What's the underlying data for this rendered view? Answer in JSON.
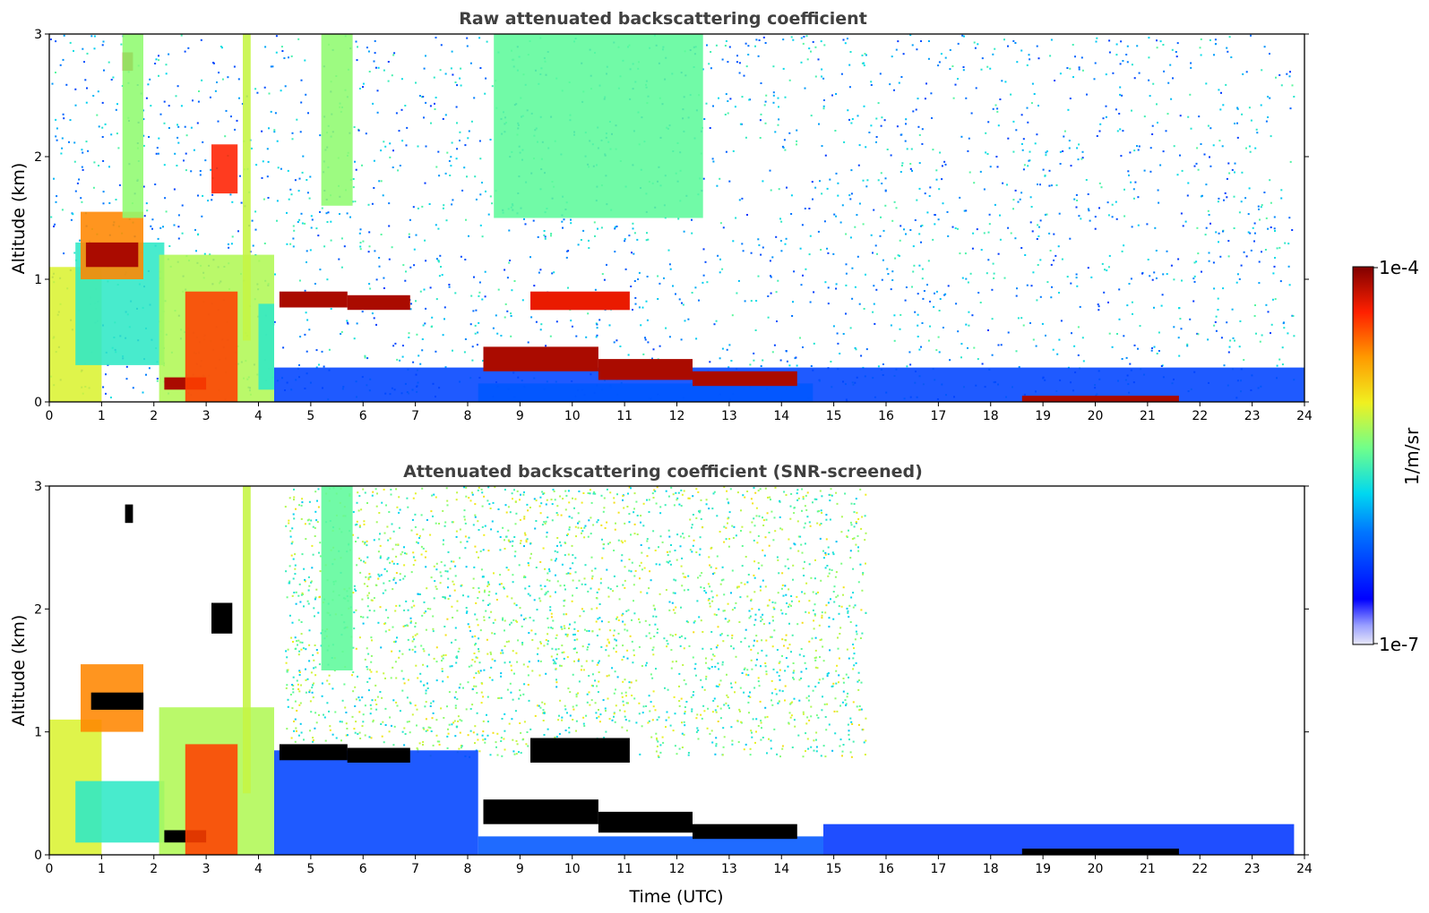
{
  "chart_data": [
    {
      "type": "heatmap",
      "id": "raw",
      "title": "Raw attenuated backscattering coefficient",
      "xlabel": "",
      "ylabel": "Altitude (km)",
      "xlim": [
        0,
        24
      ],
      "ylim": [
        0,
        3
      ],
      "xticks": [
        "0",
        "1",
        "2",
        "3",
        "4",
        "5",
        "6",
        "7",
        "8",
        "9",
        "10",
        "11",
        "12",
        "13",
        "14",
        "15",
        "16",
        "17",
        "18",
        "19",
        "20",
        "21",
        "22",
        "23",
        "24"
      ],
      "yticks": [
        "0",
        "1",
        "2",
        "3"
      ],
      "background_noise": {
        "x_range": [
          0,
          23.8
        ],
        "alt_range": [
          0,
          3.0
        ],
        "level": 0.35
      },
      "features": [
        {
          "x0": 0.0,
          "x1": 1.0,
          "y0": 0.0,
          "y1": 1.1,
          "level": 0.62
        },
        {
          "x0": 0.5,
          "x1": 2.2,
          "y0": 0.3,
          "y1": 1.3,
          "level": 0.45
        },
        {
          "x0": 0.6,
          "x1": 1.8,
          "y0": 1.0,
          "y1": 1.55,
          "level": 0.78
        },
        {
          "x0": 0.7,
          "x1": 1.7,
          "y0": 1.1,
          "y1": 1.3,
          "level": 0.96
        },
        {
          "x0": 1.4,
          "x1": 1.6,
          "y0": 2.7,
          "y1": 2.85,
          "level": 0.92
        },
        {
          "x0": 1.4,
          "x1": 1.8,
          "y0": 1.5,
          "y1": 3.0,
          "level": 0.55
        },
        {
          "x0": 2.1,
          "x1": 4.3,
          "y0": 0.0,
          "y1": 1.2,
          "level": 0.58
        },
        {
          "x0": 2.2,
          "x1": 3.0,
          "y0": 0.1,
          "y1": 0.2,
          "level": 0.96
        },
        {
          "x0": 2.6,
          "x1": 3.6,
          "y0": 0.0,
          "y1": 0.9,
          "level": 0.85
        },
        {
          "x0": 3.1,
          "x1": 3.6,
          "y0": 1.7,
          "y1": 2.1,
          "level": 0.88
        },
        {
          "x0": 3.7,
          "x1": 3.85,
          "y0": 0.5,
          "y1": 3.0,
          "level": 0.6
        },
        {
          "x0": 4.0,
          "x1": 4.3,
          "y0": 0.1,
          "y1": 0.8,
          "level": 0.45
        },
        {
          "x0": 4.3,
          "x1": 24.0,
          "y0": 0.0,
          "y1": 0.28,
          "level": 0.22
        },
        {
          "x0": 4.4,
          "x1": 5.7,
          "y0": 0.77,
          "y1": 0.9,
          "level": 0.96
        },
        {
          "x0": 5.2,
          "x1": 5.8,
          "y0": 1.6,
          "y1": 3.0,
          "level": 0.55
        },
        {
          "x0": 5.7,
          "x1": 6.9,
          "y0": 0.75,
          "y1": 0.87,
          "level": 0.96
        },
        {
          "x0": 8.2,
          "x1": 14.6,
          "y0": 0.0,
          "y1": 0.15,
          "level": 0.25
        },
        {
          "x0": 8.3,
          "x1": 10.5,
          "y0": 0.25,
          "y1": 0.45,
          "level": 0.96
        },
        {
          "x0": 10.5,
          "x1": 12.3,
          "y0": 0.18,
          "y1": 0.35,
          "level": 0.96
        },
        {
          "x0": 12.3,
          "x1": 14.3,
          "y0": 0.13,
          "y1": 0.25,
          "level": 0.96
        },
        {
          "x0": 9.2,
          "x1": 11.1,
          "y0": 0.75,
          "y1": 0.9,
          "level": 0.9
        },
        {
          "x0": 8.5,
          "x1": 12.5,
          "y0": 1.5,
          "y1": 3.0,
          "level": 0.5
        },
        {
          "x0": 18.6,
          "x1": 21.6,
          "y0": 0.0,
          "y1": 0.05,
          "level": 0.96
        }
      ]
    },
    {
      "type": "heatmap",
      "id": "snr",
      "title": "Attenuated backscattering coefficient (SNR-screened)",
      "xlabel": "Time (UTC)",
      "ylabel": "Altitude (km)",
      "xlim": [
        0,
        24
      ],
      "ylim": [
        0,
        3
      ],
      "xticks": [
        "0",
        "1",
        "2",
        "3",
        "4",
        "5",
        "6",
        "7",
        "8",
        "9",
        "10",
        "11",
        "12",
        "13",
        "14",
        "15",
        "16",
        "17",
        "18",
        "19",
        "20",
        "21",
        "22",
        "23",
        "24"
      ],
      "yticks": [
        "0",
        "1",
        "2",
        "3"
      ],
      "background_noise": {
        "x_range": [
          4.5,
          15.6
        ],
        "alt_range": [
          0.8,
          3.0
        ],
        "level": 0.52
      },
      "features": [
        {
          "x0": 0.0,
          "x1": 1.0,
          "y0": 0.0,
          "y1": 1.1,
          "level": 0.62
        },
        {
          "x0": 0.5,
          "x1": 2.2,
          "y0": 0.1,
          "y1": 0.6,
          "level": 0.45
        },
        {
          "x0": 0.6,
          "x1": 1.8,
          "y0": 1.0,
          "y1": 1.55,
          "level": 0.78
        },
        {
          "x0": 0.8,
          "x1": 1.8,
          "y0": 1.18,
          "y1": 1.32,
          "level": 1.0
        },
        {
          "x0": 1.45,
          "x1": 1.6,
          "y0": 2.7,
          "y1": 2.85,
          "level": 1.0
        },
        {
          "x0": 2.1,
          "x1": 4.3,
          "y0": 0.0,
          "y1": 1.2,
          "level": 0.58
        },
        {
          "x0": 2.2,
          "x1": 3.0,
          "y0": 0.1,
          "y1": 0.2,
          "level": 1.0
        },
        {
          "x0": 2.6,
          "x1": 3.6,
          "y0": 0.0,
          "y1": 0.9,
          "level": 0.85
        },
        {
          "x0": 3.1,
          "x1": 3.5,
          "y0": 1.8,
          "y1": 2.05,
          "level": 1.0
        },
        {
          "x0": 3.7,
          "x1": 3.85,
          "y0": 0.5,
          "y1": 3.0,
          "level": 0.6
        },
        {
          "x0": 4.3,
          "x1": 8.2,
          "y0": 0.0,
          "y1": 0.85,
          "level": 0.22
        },
        {
          "x0": 4.4,
          "x1": 5.7,
          "y0": 0.77,
          "y1": 0.9,
          "level": 1.0
        },
        {
          "x0": 5.2,
          "x1": 5.8,
          "y0": 1.5,
          "y1": 3.0,
          "level": 0.5
        },
        {
          "x0": 5.7,
          "x1": 6.9,
          "y0": 0.75,
          "y1": 0.87,
          "level": 1.0
        },
        {
          "x0": 8.2,
          "x1": 14.8,
          "y0": 0.0,
          "y1": 0.15,
          "level": 0.25
        },
        {
          "x0": 8.3,
          "x1": 10.5,
          "y0": 0.25,
          "y1": 0.45,
          "level": 1.0
        },
        {
          "x0": 10.5,
          "x1": 12.3,
          "y0": 0.18,
          "y1": 0.35,
          "level": 1.0
        },
        {
          "x0": 12.3,
          "x1": 14.3,
          "y0": 0.13,
          "y1": 0.25,
          "level": 1.0
        },
        {
          "x0": 9.2,
          "x1": 11.1,
          "y0": 0.75,
          "y1": 0.95,
          "level": 1.0
        },
        {
          "x0": 14.8,
          "x1": 23.8,
          "y0": 0.0,
          "y1": 0.25,
          "level": 0.2
        },
        {
          "x0": 18.6,
          "x1": 21.6,
          "y0": 0.0,
          "y1": 0.05,
          "level": 1.0
        }
      ]
    }
  ],
  "colorbar": {
    "label": "1/m/sr",
    "max_label": "1e-4",
    "min_label": "1e-7"
  }
}
